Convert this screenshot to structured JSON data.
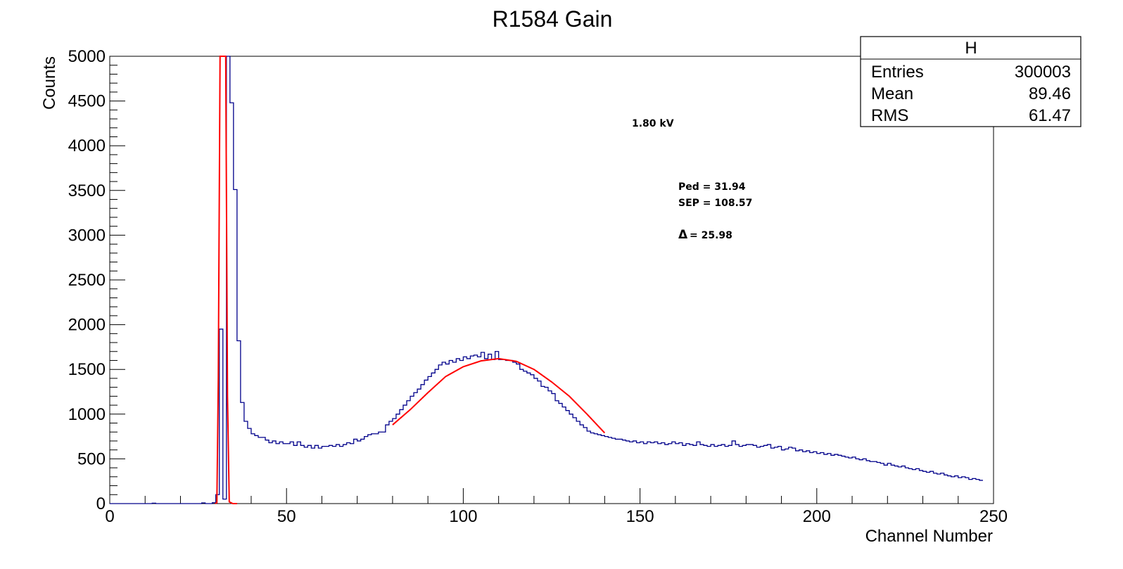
{
  "chart_data": {
    "type": "histogram",
    "title": "R1584 Gain",
    "xlabel": "Channel Number",
    "ylabel": "Counts",
    "xlim": [
      0,
      250
    ],
    "ylim": [
      0,
      5000
    ],
    "x_ticks": [
      0,
      50,
      100,
      150,
      200,
      250
    ],
    "y_ticks": [
      0,
      500,
      1000,
      1500,
      2000,
      2500,
      3000,
      3500,
      4000,
      4500,
      5000
    ],
    "bin_width": 1,
    "series": [
      {
        "color": "#00008b",
        "bins_x": [
          0,
          1,
          2,
          3,
          4,
          5,
          6,
          7,
          8,
          9,
          10,
          11,
          12,
          13,
          14,
          15,
          16,
          17,
          18,
          19,
          20,
          21,
          22,
          23,
          24,
          25,
          26,
          27,
          28,
          29,
          30,
          31,
          32,
          33,
          34,
          35,
          36,
          37,
          38,
          39,
          40,
          41,
          42,
          43,
          44,
          45,
          46,
          47,
          48,
          49,
          50,
          51,
          52,
          53,
          54,
          55,
          56,
          57,
          58,
          59,
          60,
          61,
          62,
          63,
          64,
          65,
          66,
          67,
          68,
          69,
          70,
          71,
          72,
          73,
          74,
          75,
          76,
          77,
          78,
          79,
          80,
          81,
          82,
          83,
          84,
          85,
          86,
          87,
          88,
          89,
          90,
          91,
          92,
          93,
          94,
          95,
          96,
          97,
          98,
          99,
          100,
          101,
          102,
          103,
          104,
          105,
          106,
          107,
          108,
          109,
          110,
          111,
          112,
          113,
          114,
          115,
          116,
          117,
          118,
          119,
          120,
          121,
          122,
          123,
          124,
          125,
          126,
          127,
          128,
          129,
          130,
          131,
          132,
          133,
          134,
          135,
          136,
          137,
          138,
          139,
          140,
          141,
          142,
          143,
          144,
          145,
          146,
          147,
          148,
          149,
          150,
          151,
          152,
          153,
          154,
          155,
          156,
          157,
          158,
          159,
          160,
          161,
          162,
          163,
          164,
          165,
          166,
          167,
          168,
          169,
          170,
          171,
          172,
          173,
          174,
          175,
          176,
          177,
          178,
          179,
          180,
          181,
          182,
          183,
          184,
          185,
          186,
          187,
          188,
          189,
          190,
          191,
          192,
          193,
          194,
          195,
          196,
          197,
          198,
          199,
          200,
          201,
          202,
          203,
          204,
          205,
          206,
          207,
          208,
          209,
          210,
          211,
          212,
          213,
          214,
          215,
          216,
          217,
          218,
          219,
          220,
          221,
          222,
          223,
          224,
          225,
          226,
          227,
          228,
          229,
          230,
          231,
          232,
          233,
          234,
          235,
          236,
          237,
          238,
          239,
          240,
          241,
          242,
          243,
          244,
          245,
          246,
          247,
          248,
          249
        ],
        "values": [
          0,
          0,
          0,
          0,
          0,
          0,
          0,
          0,
          0,
          0,
          0,
          0,
          5,
          0,
          0,
          0,
          0,
          0,
          0,
          0,
          0,
          0,
          0,
          0,
          0,
          0,
          8,
          0,
          0,
          10,
          100,
          1950,
          50,
          5000,
          4480,
          3510,
          1820,
          1130,
          920,
          840,
          780,
          760,
          740,
          740,
          710,
          680,
          700,
          670,
          690,
          670,
          670,
          690,
          650,
          690,
          650,
          630,
          650,
          620,
          650,
          620,
          640,
          640,
          650,
          640,
          660,
          640,
          660,
          680,
          670,
          720,
          700,
          720,
          750,
          770,
          780,
          780,
          800,
          800,
          880,
          920,
          950,
          1000,
          1050,
          1100,
          1150,
          1200,
          1240,
          1280,
          1330,
          1380,
          1420,
          1460,
          1500,
          1550,
          1580,
          1560,
          1600,
          1580,
          1620,
          1600,
          1640,
          1620,
          1650,
          1660,
          1640,
          1690,
          1620,
          1670,
          1610,
          1700,
          1610,
          1610,
          1600,
          1600,
          1580,
          1560,
          1500,
          1480,
          1460,
          1440,
          1400,
          1370,
          1310,
          1300,
          1260,
          1230,
          1150,
          1120,
          1080,
          1040,
          1000,
          960,
          920,
          880,
          850,
          810,
          790,
          780,
          770,
          760,
          750,
          740,
          730,
          720,
          720,
          710,
          700,
          690,
          700,
          680,
          690,
          670,
          690,
          680,
          690,
          670,
          680,
          660,
          670,
          690,
          670,
          680,
          650,
          670,
          660,
          650,
          690,
          660,
          650,
          640,
          660,
          640,
          650,
          660,
          640,
          650,
          700,
          660,
          640,
          650,
          660,
          660,
          650,
          630,
          640,
          650,
          660,
          620,
          630,
          640,
          600,
          610,
          630,
          620,
          590,
          600,
          580,
          590,
          570,
          580,
          560,
          570,
          550,
          560,
          540,
          550,
          540,
          530,
          520,
          510,
          520,
          500,
          490,
          500,
          480,
          470,
          470,
          460,
          450,
          430,
          450,
          430,
          420,
          410,
          420,
          400,
          390,
          380,
          390,
          370,
          360,
          350,
          360,
          340,
          330,
          340,
          320,
          310,
          300,
          310,
          290,
          300,
          290,
          270,
          280,
          270,
          260
        ]
      },
      {
        "color": "#ff0000",
        "kind": "pedestal-fit",
        "points": [
          [
            29.8,
            0
          ],
          [
            30.3,
            10
          ],
          [
            30.7,
            1400
          ],
          [
            31.2,
            5000
          ],
          [
            32.8,
            5000
          ],
          [
            33.3,
            1200
          ],
          [
            33.8,
            20
          ],
          [
            34.8,
            0
          ],
          [
            36.0,
            0
          ]
        ]
      },
      {
        "color": "#ff0000",
        "kind": "gaussian-fit",
        "points": [
          [
            80,
            880
          ],
          [
            85,
            1050
          ],
          [
            90,
            1240
          ],
          [
            95,
            1420
          ],
          [
            100,
            1530
          ],
          [
            105,
            1595
          ],
          [
            110,
            1620
          ],
          [
            115,
            1590
          ],
          [
            120,
            1500
          ],
          [
            125,
            1360
          ],
          [
            130,
            1200
          ],
          [
            135,
            1000
          ],
          [
            140,
            790
          ]
        ]
      }
    ]
  },
  "stats_box": {
    "title": "H",
    "rows": [
      {
        "label": "Entries",
        "value": "300003"
      },
      {
        "label": "Mean",
        "value": "89.46"
      },
      {
        "label": "RMS",
        "value": "61.47"
      }
    ]
  },
  "annotations": {
    "voltage": "1.80 kV",
    "ped": "Ped = 31.94",
    "sep": "SEP = 108.57",
    "delta_symbol": "Δ",
    "delta": "=  25.98"
  }
}
